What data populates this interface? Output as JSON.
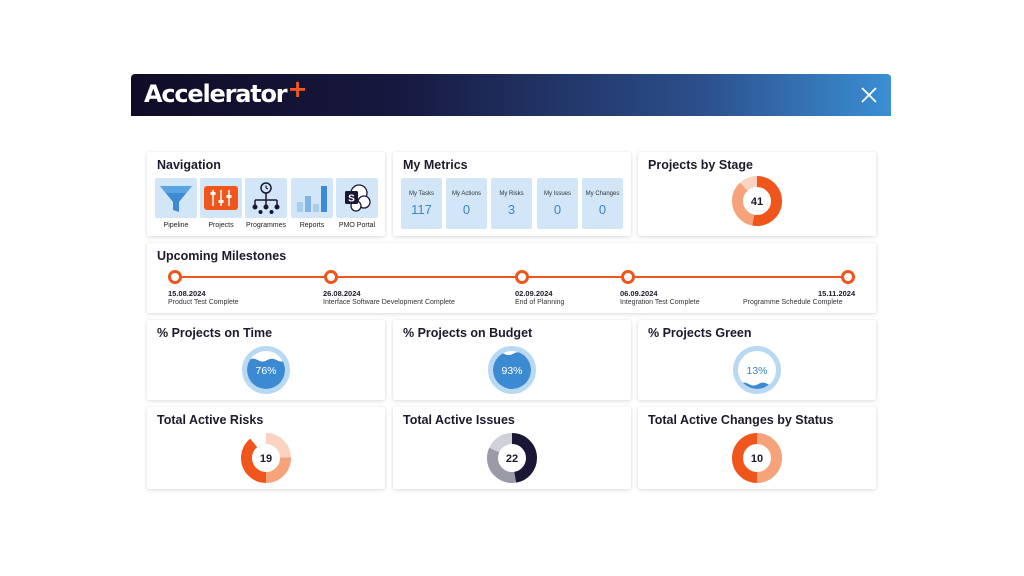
{
  "app": {
    "title": "Accelerator",
    "title_suffix": "+"
  },
  "navigation": {
    "title": "Navigation",
    "items": [
      {
        "label": "Pipeline",
        "icon": "funnel-icon"
      },
      {
        "label": "Projects",
        "icon": "sliders-icon"
      },
      {
        "label": "Programmes",
        "icon": "hierarchy-icon"
      },
      {
        "label": "Reports",
        "icon": "bar-chart-icon"
      },
      {
        "label": "PMO Portal",
        "icon": "sharepoint-icon"
      }
    ]
  },
  "metrics": {
    "title": "My Metrics",
    "items": [
      {
        "label": "My Tasks",
        "value": "117"
      },
      {
        "label": "My Actions",
        "value": "0"
      },
      {
        "label": "My Risks",
        "value": "3"
      },
      {
        "label": "My Issues",
        "value": "0"
      },
      {
        "label": "My Changes",
        "value": "0"
      }
    ]
  },
  "stage": {
    "title": "Projects by Stage",
    "total": "41"
  },
  "milestones": {
    "title": "Upcoming Milestones",
    "items": [
      {
        "date": "15.08.2024",
        "name": "Product Test Complete"
      },
      {
        "date": "26.08.2024",
        "name": "Interface Software Development Complete"
      },
      {
        "date": "02.09.2024",
        "name": "End of Planning"
      },
      {
        "date": "06.09.2024",
        "name": "Integration Test Complete"
      },
      {
        "date": "15.11.2024",
        "name": "Programme Schedule Complete"
      }
    ]
  },
  "kpis": [
    {
      "title": "% Projects on Time",
      "value": "76%",
      "fraction": 0.76
    },
    {
      "title": "% Projects on Budget",
      "value": "93%",
      "fraction": 0.93
    },
    {
      "title": "% Projects Green",
      "value": "13%",
      "fraction": 0.13
    }
  ],
  "totals": {
    "risks": {
      "title": "Total Active Risks",
      "total": "19"
    },
    "issues": {
      "title": "Total Active Issues",
      "total": "22"
    },
    "changes": {
      "title": "Total Active Changes by Status",
      "total": "10"
    }
  },
  "colors": {
    "accent": "#f0561b",
    "orange_light": "#f6a27a",
    "orange_pale": "#fbd3c0",
    "tile_blue": "#d2e6f7",
    "metric_blue": "#3a86c8",
    "gauge_ring": "#b9d8f1",
    "gauge_fill": "#3b8ad2",
    "navy": "#1a1736",
    "gray": "#9a9aa8",
    "gray_light": "#cfd0d8"
  }
}
